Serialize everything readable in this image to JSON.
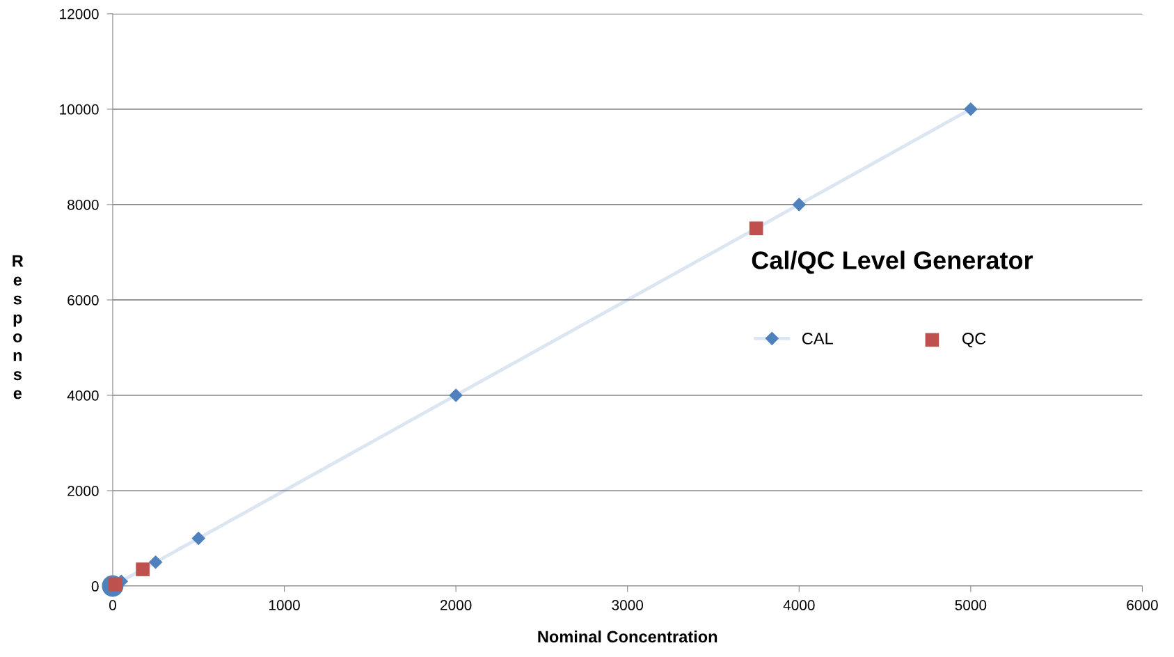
{
  "chart_data": {
    "type": "scatter",
    "title": "Cal/QC Level Generator",
    "xlabel": "Nominal Concentration",
    "ylabel": "Response",
    "series": [
      {
        "name": "CAL",
        "type": "line",
        "marker": "diamond",
        "color": "#4f81bd",
        "x": [
          50,
          250,
          500,
          2000,
          4000,
          5000
        ],
        "values": [
          100,
          500,
          1000,
          4000,
          8000,
          10000
        ]
      },
      {
        "name": "QC",
        "marker": "square",
        "color": "#c0504d",
        "x": [
          15,
          175,
          3750
        ],
        "values": [
          30,
          350,
          7500
        ]
      },
      {
        "marker": "circle",
        "color": "#4f81bd",
        "x": [
          0
        ],
        "values": [
          0
        ]
      }
    ],
    "xlim": [
      0,
      6000
    ],
    "xticks": [
      0,
      1000,
      2000,
      3000,
      4000,
      5000,
      6000
    ],
    "ylim": [
      0,
      12000
    ],
    "yticks": [
      0,
      2000,
      4000,
      6000,
      8000,
      10000,
      12000
    ],
    "grid": "y",
    "legend": "right"
  }
}
